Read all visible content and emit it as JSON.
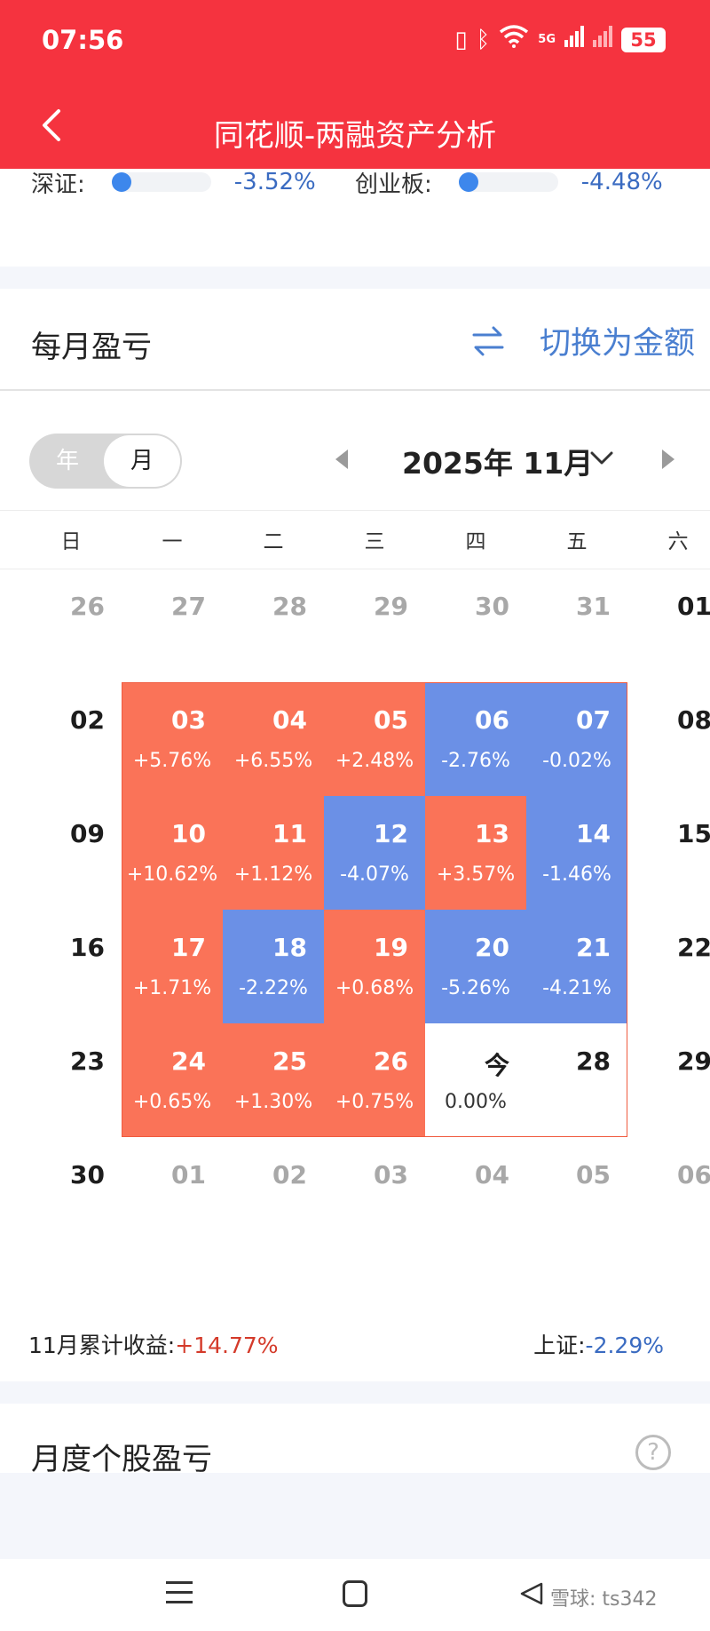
{
  "status": {
    "time": "07:56",
    "network": "5G",
    "battery": "55"
  },
  "header": {
    "title": "同花顺-两融资产分析"
  },
  "indices": [
    {
      "label": "深证:",
      "value": "-3.52%"
    },
    {
      "label": "创业板:",
      "value": "-4.48%"
    }
  ],
  "monthly": {
    "title": "每月盈亏",
    "switch_label": "切换为金额",
    "toggle_year": "年",
    "toggle_month": "月",
    "month_label": "2025年 11月"
  },
  "weekdays": [
    "日",
    "一",
    "二",
    "三",
    "四",
    "五",
    "六"
  ],
  "calendar_rows": [
    [
      {
        "day": "26",
        "pct": "",
        "type": "muted"
      },
      {
        "day": "27",
        "pct": "",
        "type": "muted"
      },
      {
        "day": "28",
        "pct": "",
        "type": "muted"
      },
      {
        "day": "29",
        "pct": "",
        "type": "muted"
      },
      {
        "day": "30",
        "pct": "",
        "type": "muted"
      },
      {
        "day": "31",
        "pct": "",
        "type": "muted"
      },
      {
        "day": "01",
        "pct": "",
        "type": "plain"
      }
    ],
    [
      {
        "day": "02",
        "pct": "",
        "type": "plain"
      },
      {
        "day": "03",
        "pct": "+5.76%",
        "type": "up"
      },
      {
        "day": "04",
        "pct": "+6.55%",
        "type": "up"
      },
      {
        "day": "05",
        "pct": "+2.48%",
        "type": "up"
      },
      {
        "day": "06",
        "pct": "-2.76%",
        "type": "down"
      },
      {
        "day": "07",
        "pct": "-0.02%",
        "type": "down"
      },
      {
        "day": "08",
        "pct": "",
        "type": "plain"
      }
    ],
    [
      {
        "day": "09",
        "pct": "",
        "type": "plain"
      },
      {
        "day": "10",
        "pct": "+10.62%",
        "type": "up"
      },
      {
        "day": "11",
        "pct": "+1.12%",
        "type": "up"
      },
      {
        "day": "12",
        "pct": "-4.07%",
        "type": "down"
      },
      {
        "day": "13",
        "pct": "+3.57%",
        "type": "up"
      },
      {
        "day": "14",
        "pct": "-1.46%",
        "type": "down"
      },
      {
        "day": "15",
        "pct": "",
        "type": "plain"
      }
    ],
    [
      {
        "day": "16",
        "pct": "",
        "type": "plain"
      },
      {
        "day": "17",
        "pct": "+1.71%",
        "type": "up"
      },
      {
        "day": "18",
        "pct": "-2.22%",
        "type": "down"
      },
      {
        "day": "19",
        "pct": "+0.68%",
        "type": "up"
      },
      {
        "day": "20",
        "pct": "-5.26%",
        "type": "down"
      },
      {
        "day": "21",
        "pct": "-4.21%",
        "type": "down"
      },
      {
        "day": "22",
        "pct": "",
        "type": "plain"
      }
    ],
    [
      {
        "day": "23",
        "pct": "",
        "type": "plain"
      },
      {
        "day": "24",
        "pct": "+0.65%",
        "type": "up"
      },
      {
        "day": "25",
        "pct": "+1.30%",
        "type": "up"
      },
      {
        "day": "26",
        "pct": "+0.75%",
        "type": "up"
      },
      {
        "day": "今",
        "pct": "0.00%",
        "type": "today"
      },
      {
        "day": "28",
        "pct": "",
        "type": "plain"
      },
      {
        "day": "29",
        "pct": "",
        "type": "plain"
      }
    ],
    [
      {
        "day": "30",
        "pct": "",
        "type": "plain"
      },
      {
        "day": "01",
        "pct": "",
        "type": "muted"
      },
      {
        "day": "02",
        "pct": "",
        "type": "muted"
      },
      {
        "day": "03",
        "pct": "",
        "type": "muted"
      },
      {
        "day": "04",
        "pct": "",
        "type": "muted"
      },
      {
        "day": "05",
        "pct": "",
        "type": "muted"
      },
      {
        "day": "06",
        "pct": "",
        "type": "muted"
      }
    ]
  ],
  "summary": {
    "label": "11月累计收益:",
    "value": "+14.77%",
    "index_label": "上证:",
    "index_value": "-2.29%"
  },
  "section2": {
    "title": "月度个股盈亏",
    "help": "?"
  },
  "colors": {
    "brand": "#f5333f",
    "gain": "#fa7358",
    "loss": "#6b90e6",
    "accent": "#4a7fd0"
  },
  "watermark": "雪球: ts342"
}
